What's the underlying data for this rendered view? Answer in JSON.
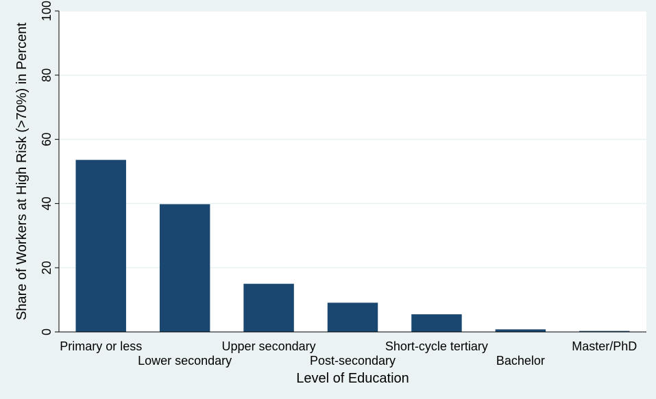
{
  "chart_data": {
    "type": "bar",
    "categories": [
      "Primary or less",
      "Lower secondary",
      "Upper secondary",
      "Post-secondary",
      "Short-cycle tertiary",
      "Bachelor",
      "Master/PhD"
    ],
    "values": [
      53.6,
      39.8,
      15.0,
      9.1,
      5.5,
      0.8,
      0.3
    ],
    "title": "",
    "xlabel": "Level of Education",
    "ylabel": "Share of Workers at High Risk (>70%) in Percent",
    "ylim": [
      0,
      100
    ],
    "yticks": [
      0,
      20,
      40,
      60,
      80,
      100
    ],
    "grid": true,
    "legend": "none",
    "colors": {
      "bar": "#1a476f",
      "outer_background": "#eaf2f3",
      "plot_background": "#ffffff",
      "grid": "#eaf2f3"
    }
  }
}
